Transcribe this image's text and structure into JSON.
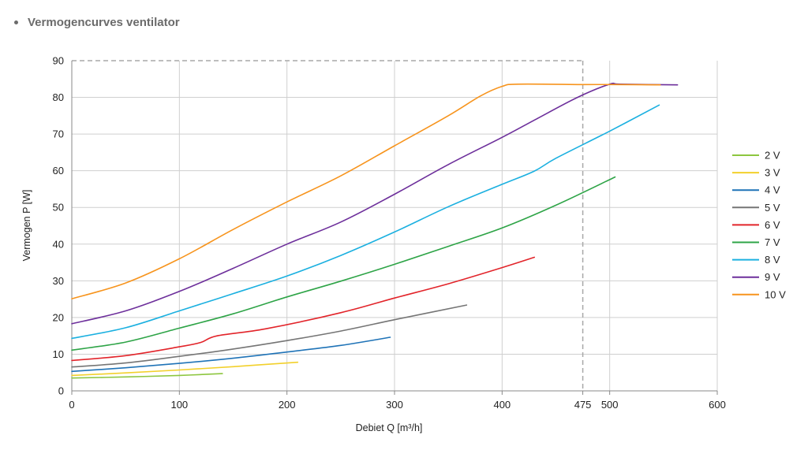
{
  "heading": "Vermogencurves ventilator",
  "chart_data": {
    "type": "line",
    "title": "Vermogencurves ventilator",
    "xlabel": "Debiet Q [m³/h]",
    "ylabel": "Vermogen P [W]",
    "xlim": [
      0,
      600
    ],
    "ylim": [
      0,
      90
    ],
    "x_ticks": [
      "0",
      "100",
      "200",
      "300",
      "400",
      "475",
      "500",
      "600"
    ],
    "y_ticks": [
      "0",
      "10",
      "20",
      "30",
      "40",
      "50",
      "60",
      "70",
      "80",
      "90"
    ],
    "reference_line_x": 475,
    "max_power_y": 90,
    "grid": true,
    "legend_position": "right",
    "series": [
      {
        "name": "2 V",
        "color": "#8dc63f",
        "points": [
          [
            0,
            3.5
          ],
          [
            50,
            3.8
          ],
          [
            100,
            4.2
          ],
          [
            140,
            4.7
          ]
        ]
      },
      {
        "name": "3 V",
        "color": "#f2d02b",
        "points": [
          [
            0,
            4.2
          ],
          [
            50,
            4.9
          ],
          [
            100,
            5.7
          ],
          [
            150,
            6.6
          ],
          [
            210,
            7.8
          ]
        ]
      },
      {
        "name": "4 V",
        "color": "#1f73b7",
        "points": [
          [
            0,
            5.3
          ],
          [
            50,
            6.3
          ],
          [
            100,
            7.5
          ],
          [
            150,
            8.9
          ],
          [
            200,
            10.6
          ],
          [
            250,
            12.4
          ],
          [
            296,
            14.6
          ]
        ]
      },
      {
        "name": "5 V",
        "color": "#757575",
        "points": [
          [
            0,
            6.5
          ],
          [
            50,
            7.6
          ],
          [
            100,
            9.4
          ],
          [
            150,
            11.4
          ],
          [
            200,
            13.7
          ],
          [
            250,
            16.3
          ],
          [
            300,
            19.4
          ],
          [
            367,
            23.4
          ]
        ]
      },
      {
        "name": "6 V",
        "color": "#e2242a",
        "points": [
          [
            0,
            8.3
          ],
          [
            50,
            9.6
          ],
          [
            100,
            12.0
          ],
          [
            120,
            13.2
          ],
          [
            135,
            15.0
          ],
          [
            180,
            16.9
          ],
          [
            250,
            21.3
          ],
          [
            300,
            25.3
          ],
          [
            350,
            29.2
          ],
          [
            400,
            33.6
          ],
          [
            430,
            36.4
          ]
        ]
      },
      {
        "name": "7 V",
        "color": "#2ea447",
        "points": [
          [
            0,
            11.1
          ],
          [
            50,
            13.3
          ],
          [
            100,
            17.1
          ],
          [
            150,
            21.0
          ],
          [
            200,
            25.6
          ],
          [
            250,
            29.9
          ],
          [
            300,
            34.5
          ],
          [
            350,
            39.4
          ],
          [
            400,
            44.4
          ],
          [
            450,
            50.6
          ],
          [
            505,
            58.3
          ]
        ]
      },
      {
        "name": "8 V",
        "color": "#1bb0e0",
        "points": [
          [
            0,
            14.3
          ],
          [
            50,
            17.2
          ],
          [
            100,
            21.8
          ],
          [
            150,
            26.5
          ],
          [
            200,
            31.3
          ],
          [
            250,
            36.9
          ],
          [
            300,
            43.3
          ],
          [
            350,
            50.2
          ],
          [
            400,
            56.3
          ],
          [
            430,
            59.9
          ],
          [
            450,
            63.4
          ],
          [
            500,
            70.8
          ],
          [
            546,
            77.9
          ]
        ]
      },
      {
        "name": "9 V",
        "color": "#6d2f9b",
        "points": [
          [
            0,
            18.3
          ],
          [
            50,
            21.8
          ],
          [
            100,
            27.1
          ],
          [
            150,
            33.4
          ],
          [
            200,
            40.0
          ],
          [
            250,
            46.0
          ],
          [
            300,
            53.6
          ],
          [
            350,
            61.7
          ],
          [
            400,
            69.1
          ],
          [
            430,
            73.8
          ],
          [
            470,
            80.0
          ],
          [
            500,
            83.6
          ],
          [
            510,
            83.6
          ],
          [
            563,
            83.4
          ]
        ]
      },
      {
        "name": "10 V",
        "color": "#f7941d",
        "points": [
          [
            0,
            25.1
          ],
          [
            50,
            29.4
          ],
          [
            100,
            36.0
          ],
          [
            150,
            44.0
          ],
          [
            200,
            51.5
          ],
          [
            250,
            58.6
          ],
          [
            300,
            66.8
          ],
          [
            350,
            75.0
          ],
          [
            380,
            80.4
          ],
          [
            400,
            83.0
          ],
          [
            415,
            83.6
          ],
          [
            475,
            83.5
          ],
          [
            505,
            83.5
          ],
          [
            547,
            83.4
          ]
        ]
      }
    ]
  }
}
